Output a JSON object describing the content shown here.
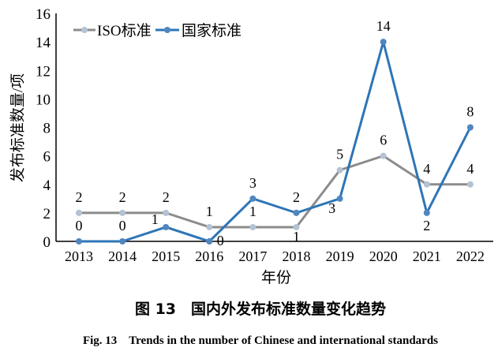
{
  "chart_data": {
    "type": "line",
    "categories": [
      "2013",
      "2014",
      "2015",
      "2016",
      "2017",
      "2018",
      "2019",
      "2020",
      "2021",
      "2022"
    ],
    "series": [
      {
        "name": "ISO标准",
        "color": "#8c8c8c",
        "marker_color": "#b4c2d4",
        "values": [
          2,
          2,
          2,
          1,
          1,
          1,
          5,
          6,
          4,
          4
        ]
      },
      {
        "name": "国家标准",
        "color": "#2e75b6",
        "marker_color": "#4f86c0",
        "values": [
          0,
          0,
          1,
          0,
          3,
          2,
          3,
          14,
          2,
          8
        ]
      }
    ],
    "xlabel": "年份",
    "ylabel": "发布标准数量/项",
    "ylim": [
      0,
      16
    ],
    "yticks": [
      "0",
      "2",
      "4",
      "6",
      "8",
      "10",
      "12",
      "14",
      "16"
    ],
    "grid": false,
    "legend": "top-left",
    "caption_cn": "图 13　国内外发布标准数量变化趋势",
    "caption_en": "Fig. 13　Trends in the number of Chinese and international standards"
  }
}
